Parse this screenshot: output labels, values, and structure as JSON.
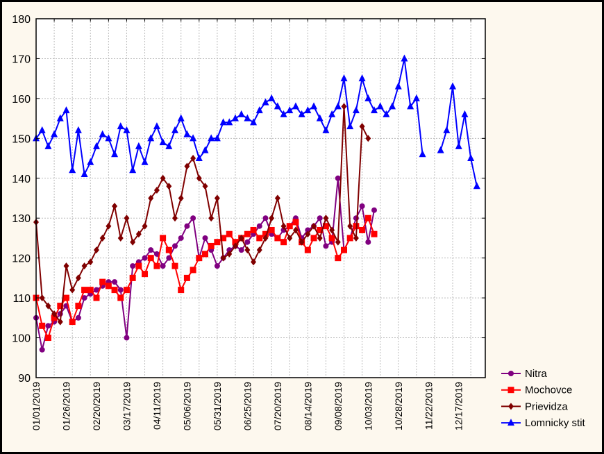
{
  "chart_data": {
    "type": "line",
    "title": "",
    "xlabel": "",
    "ylabel": "",
    "ylim": [
      90,
      180
    ],
    "yticks": [
      90,
      100,
      110,
      120,
      130,
      140,
      150,
      160,
      170,
      180
    ],
    "x_start": "01/01/2019",
    "x_step_days": 5,
    "x_range_days": [
      0,
      372
    ],
    "xtick_days": [
      0,
      25,
      50,
      75,
      100,
      125,
      150,
      175,
      200,
      225,
      250,
      275,
      300,
      325,
      350
    ],
    "xtick_labels": [
      "01/01/2019",
      "01/26/2019",
      "02/20/2019",
      "03/17/2019",
      "04/11/2019",
      "05/06/2019",
      "05/31/2019",
      "06/25/2019",
      "07/20/2019",
      "08/14/2019",
      "09/08/2019",
      "10/03/2019",
      "10/28/2019",
      "11/22/2019",
      "12/17/2019"
    ],
    "grid": true,
    "legend_position": "bottom-right",
    "series": [
      {
        "name": "Nitra",
        "color": "#800080",
        "marker": "circle",
        "values": [
          105,
          97,
          103,
          104,
          106,
          108,
          104,
          105,
          110,
          111,
          112,
          113,
          114,
          114,
          112,
          100,
          118,
          119,
          120,
          122,
          121,
          118,
          120,
          123,
          125,
          128,
          130,
          120,
          125,
          122,
          118,
          120,
          122,
          123,
          122,
          124,
          126,
          128,
          130,
          126,
          125,
          127,
          128,
          130,
          125,
          127,
          128,
          130,
          123,
          124,
          140,
          122,
          125,
          130,
          133,
          124,
          132
        ]
      },
      {
        "name": "Mochovce",
        "color": "#ff0000",
        "marker": "square",
        "values": [
          110,
          103,
          100,
          105,
          108,
          110,
          104,
          108,
          112,
          112,
          110,
          114,
          113,
          112,
          110,
          112,
          115,
          118,
          116,
          120,
          118,
          125,
          122,
          118,
          112,
          115,
          117,
          120,
          121,
          123,
          124,
          125,
          126,
          124,
          125,
          126,
          127,
          125,
          126,
          127,
          125,
          124,
          128,
          129,
          124,
          122,
          125,
          127,
          128,
          125,
          120,
          122,
          125,
          128,
          127,
          130,
          126
        ]
      },
      {
        "name": "Prievidza",
        "color": "#800000",
        "marker": "diamond",
        "values": [
          129,
          110,
          108,
          106,
          104,
          118,
          112,
          115,
          118,
          119,
          122,
          125,
          128,
          133,
          125,
          130,
          124,
          126,
          128,
          135,
          137,
          140,
          138,
          130,
          135,
          143,
          145,
          140,
          138,
          130,
          135,
          120,
          121,
          123,
          125,
          122,
          119,
          122,
          125,
          130,
          135,
          128,
          125,
          127,
          124,
          126,
          128,
          125,
          130,
          127,
          124,
          158,
          128,
          125,
          153,
          150
        ]
      },
      {
        "name": "Lomnicky stit",
        "color": "#0000ff",
        "marker": "triangle",
        "values": [
          150,
          152,
          148,
          151,
          155,
          157,
          142,
          152,
          141,
          144,
          148,
          151,
          150,
          146,
          153,
          152,
          142,
          148,
          144,
          150,
          153,
          149,
          148,
          152,
          155,
          151,
          150,
          145,
          147,
          150,
          150,
          154,
          154,
          155,
          156,
          155,
          154,
          157,
          159,
          160,
          158,
          156,
          157,
          158,
          156,
          157,
          158,
          155,
          152,
          156,
          158,
          165,
          153,
          157,
          165,
          160,
          157,
          158,
          156,
          158,
          163,
          170,
          158,
          160,
          146,
          null,
          null,
          147,
          152,
          163,
          148,
          156,
          145,
          138
        ]
      }
    ]
  }
}
